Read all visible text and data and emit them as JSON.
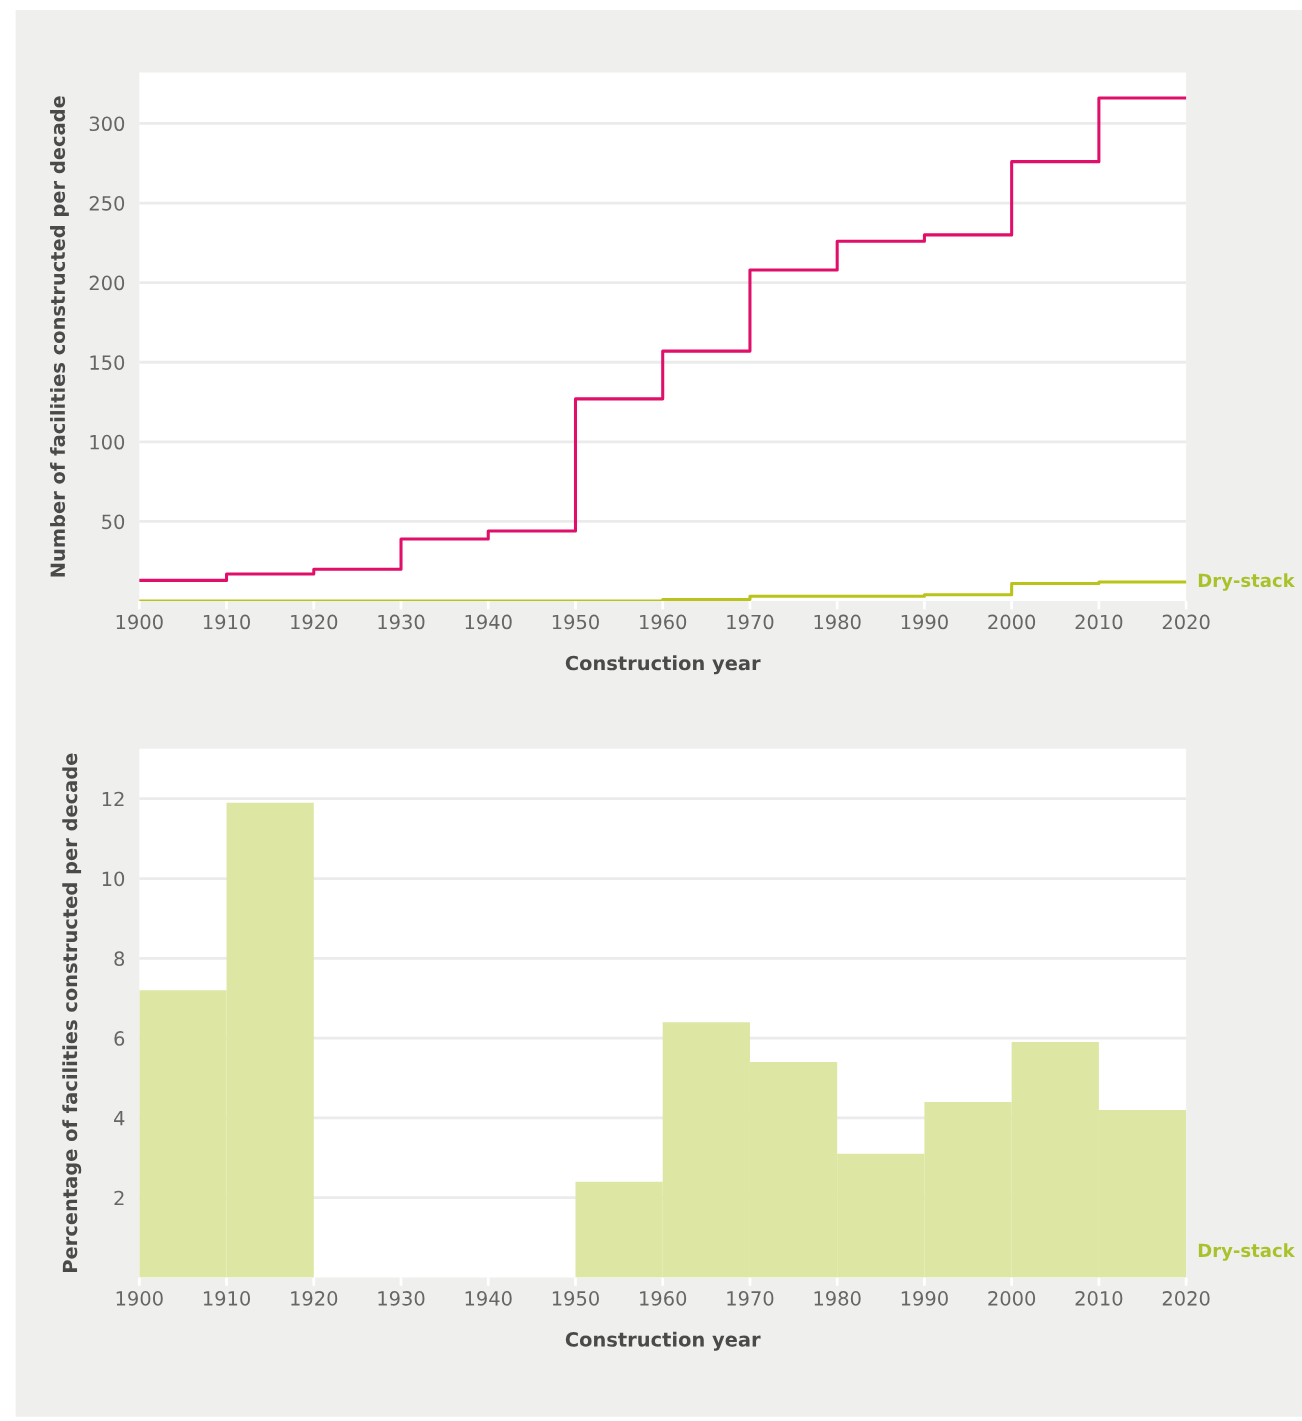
{
  "chart_data": [
    {
      "type": "step",
      "xlabel": "Construction year",
      "ylabel": "Number of facilities constructed per decade",
      "x": [
        1900,
        1910,
        1920,
        1930,
        1940,
        1950,
        1960,
        1970,
        1980,
        1990,
        2000,
        2010,
        2020
      ],
      "series": [
        {
          "color": "#e0106a",
          "values": [
            13,
            17,
            20,
            39,
            44,
            127,
            157,
            208,
            226,
            230,
            276,
            316,
            316
          ]
        },
        {
          "name": "Dry-stack",
          "color": "#b9c31a",
          "values": [
            0,
            0,
            0,
            0,
            0,
            0,
            1,
            3,
            3,
            4,
            11,
            12,
            12
          ]
        }
      ],
      "xlim": [
        1900,
        2020
      ],
      "xticks": [
        1900,
        1910,
        1920,
        1930,
        1940,
        1950,
        1960,
        1970,
        1980,
        1990,
        2000,
        2010,
        2020
      ],
      "ylim": [
        0,
        332
      ],
      "yticks": [
        50,
        100,
        150,
        200,
        250,
        300
      ],
      "grid": "y"
    },
    {
      "type": "histogram",
      "xlabel": "Construction year",
      "ylabel": "Percentage of facilities constructed per decade",
      "bins": [
        1900,
        1910,
        1920,
        1930,
        1940,
        1950,
        1960,
        1970,
        1980,
        1990,
        2000,
        2010,
        2020
      ],
      "series": [
        {
          "name": "Dry-stack",
          "color": "#dde6a3",
          "values": [
            7.2,
            11.9,
            0,
            0,
            0,
            2.4,
            6.4,
            5.4,
            3.1,
            4.4,
            5.9,
            4.2
          ]
        }
      ],
      "xlim": [
        1900,
        2020
      ],
      "xticks": [
        1900,
        1910,
        1920,
        1930,
        1940,
        1950,
        1960,
        1970,
        1980,
        1990,
        2000,
        2010,
        2020
      ],
      "ylim": [
        0,
        13.25
      ],
      "yticks": [
        2,
        4,
        6,
        8,
        10,
        12
      ],
      "grid": "y"
    }
  ]
}
